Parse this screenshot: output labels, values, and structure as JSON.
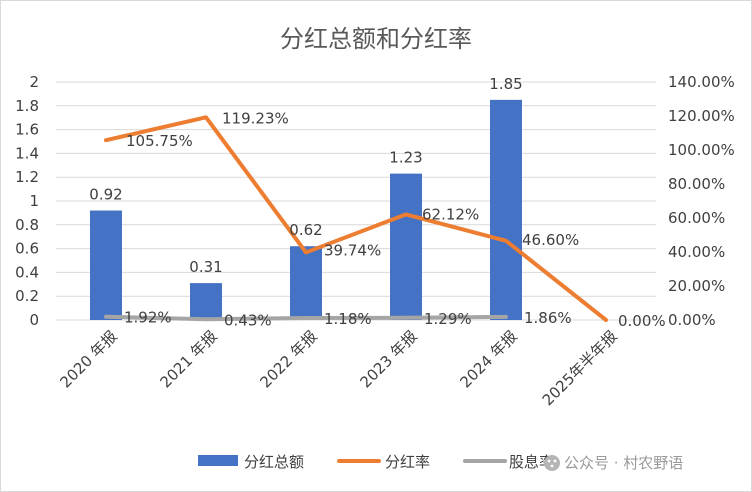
{
  "chart_data": {
    "type": "bar",
    "title": "分红总额和分红率",
    "categories": [
      "2020年报",
      "2021年报",
      "2022年报",
      "2023年报",
      "2024年报",
      "2025年半年报"
    ],
    "category_labels": [
      "2020 年报",
      "2021 年报",
      "2022 年报",
      "2023 年报",
      "2024 年报",
      "2025年半年报"
    ],
    "series": [
      {
        "name": "分红总额",
        "kind": "bar",
        "axis": "left",
        "color": "#4472C4",
        "values": [
          0.92,
          0.31,
          0.62,
          1.23,
          1.85,
          null
        ],
        "labels": [
          "0.92",
          "0.31",
          "0.62",
          "1.23",
          "1.85",
          ""
        ]
      },
      {
        "name": "分红率",
        "kind": "line",
        "axis": "right",
        "color": "#ED7D31",
        "values": [
          105.75,
          119.23,
          39.74,
          62.12,
          46.6,
          0.0
        ],
        "labels": [
          "105.75%",
          "119.23%",
          "39.74%",
          "62.12%",
          "46.60%",
          "0.00%"
        ]
      },
      {
        "name": "股息率",
        "kind": "line",
        "axis": "right",
        "color": "#A5A5A5",
        "values": [
          1.92,
          0.43,
          1.18,
          1.29,
          1.86,
          null
        ],
        "labels": [
          "1.92%",
          "0.43%",
          "1.18%",
          "1.29%",
          "1.86%",
          ""
        ]
      }
    ],
    "y_left": {
      "min": 0,
      "max": 2,
      "ticks": [
        "0",
        "0.2",
        "0.4",
        "0.6",
        "0.8",
        "1",
        "1.2",
        "1.4",
        "1.6",
        "1.8",
        "2"
      ]
    },
    "y_right": {
      "min": 0,
      "max": 140,
      "ticks": [
        "0.00%",
        "20.00%",
        "40.00%",
        "60.00%",
        "80.00%",
        "100.00%",
        "120.00%",
        "140.00%"
      ]
    },
    "grid": true,
    "legend_position": "bottom"
  },
  "watermark": {
    "text": "公众号 · 村农野语",
    "icon": "wechat-official-account-icon"
  }
}
